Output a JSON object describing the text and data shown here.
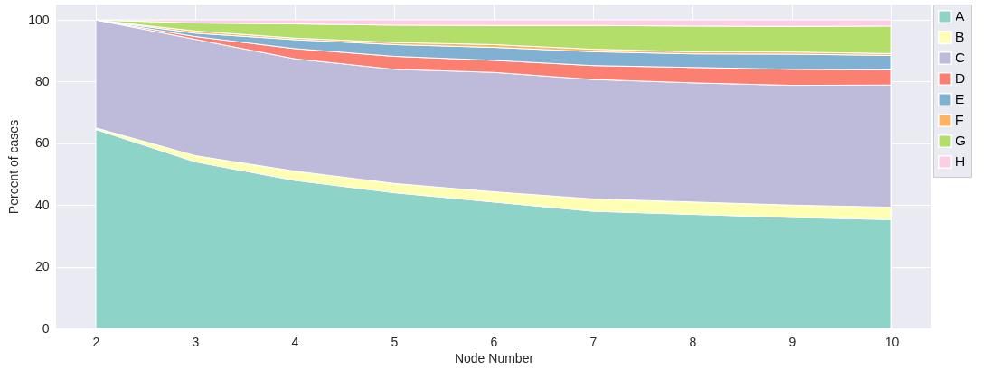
{
  "chart_data": {
    "type": "area",
    "stacked": true,
    "xlabel": "Node Number",
    "ylabel": "Percent of cases",
    "x": [
      2,
      3,
      4,
      5,
      6,
      7,
      8,
      9,
      10
    ],
    "xlim": [
      1.6,
      10.4
    ],
    "xticks": [
      2,
      3,
      4,
      5,
      6,
      7,
      8,
      9,
      10
    ],
    "ylim": [
      0,
      105
    ],
    "yticks": [
      0,
      20,
      40,
      60,
      80,
      100
    ],
    "grid": true,
    "legend": "right",
    "series": [
      {
        "name": "A",
        "color": "#8dd3c7",
        "values": [
          64.5,
          54,
          48,
          44,
          41,
          38,
          37,
          36,
          35.3
        ]
      },
      {
        "name": "B",
        "color": "#ffffb3",
        "values": [
          0.5,
          2,
          3,
          3,
          3.3,
          4,
          4,
          4,
          4
        ]
      },
      {
        "name": "C",
        "color": "#bebada",
        "values": [
          35,
          37.7,
          36.4,
          37,
          38.7,
          38.7,
          38.6,
          38.8,
          39.6
        ]
      },
      {
        "name": "D",
        "color": "#fb8072",
        "values": [
          0,
          0.9,
          3.3,
          4.2,
          3.9,
          4.5,
          5,
          5.2,
          4.9
        ]
      },
      {
        "name": "E",
        "color": "#80b1d3",
        "values": [
          0,
          1.1,
          2.9,
          3.8,
          4.2,
          4.5,
          4.4,
          4.9,
          4.7
        ]
      },
      {
        "name": "F",
        "color": "#fdb462",
        "values": [
          0,
          0.7,
          0.5,
          0.7,
          0.9,
          0.8,
          0.7,
          0.7,
          0.6
        ]
      },
      {
        "name": "G",
        "color": "#b3de69",
        "values": [
          0,
          2.6,
          4.6,
          5.6,
          6.2,
          7.7,
          8.3,
          8.3,
          8.9
        ]
      },
      {
        "name": "H",
        "color": "#fccde5",
        "values": [
          0,
          1,
          1.3,
          1.7,
          1.8,
          1.8,
          2,
          2.1,
          2
        ]
      }
    ]
  }
}
